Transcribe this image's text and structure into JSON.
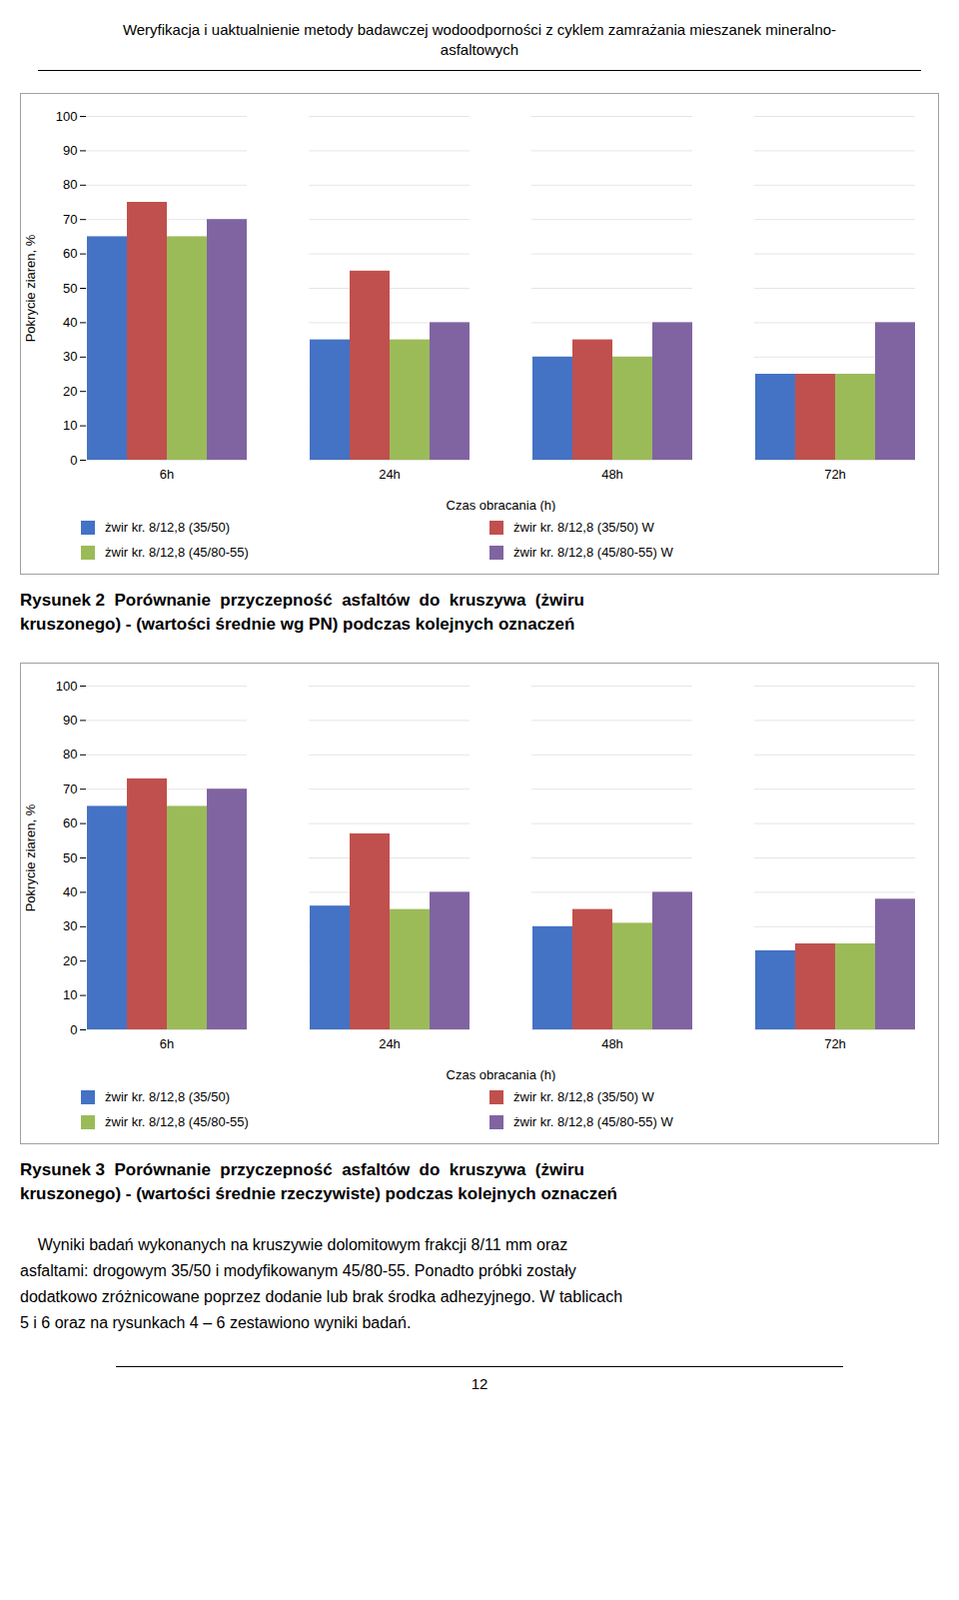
{
  "title": [
    "Weryfikacja i uaktualnienie metody badawczej wodoodporności z cyklem zamrażania mieszanek mineralno-",
    "asfaltowych"
  ],
  "text": [
    "    Wyniki badań wykonanych na kruszywie dolomitowym frakcji 8/11 mm oraz",
    "asfaltami: drogowym 35/50 i modyfikowanym 45/80-55. Ponadto próbki zostały",
    "dodatkowo zróżnicowane poprzez dodanie lub brak środka adhezyjnego. W tablicach",
    "5 i 6 oraz na rysunkach 4 – 6 zestawiono wyniki badań."
  ],
  "page_number": "12",
  "chart_data": [
    {
      "type": "bar",
      "caption": [
        "Rysunek 2  Porównanie  przyczepność  asfaltów  do  kruszywa  (żwiru",
        "kruszonego) - (wartości średnie wg PN) podczas kolejnych oznaczeń"
      ],
      "categories": [
        "6h",
        "24h",
        "48h",
        "72h"
      ],
      "series": [
        {
          "name": "żwir kr. 8/12,8 (35/50)",
          "color": "#4472C4",
          "values": [
            65,
            35,
            30,
            25
          ]
        },
        {
          "name": "żwir kr. 8/12,8 (35/50) W",
          "color": "#C0504D",
          "values": [
            75,
            55,
            35,
            25
          ]
        },
        {
          "name": "żwir kr. 8/12,8 (45/80-55)",
          "color": "#9BBB59",
          "values": [
            65,
            35,
            30,
            25
          ]
        },
        {
          "name": "żwir kr. 8/12,8 (45/80-55) W",
          "color": "#8064A2",
          "values": [
            70,
            40,
            40,
            40
          ]
        }
      ],
      "xlabel": "Czas obracania (h)",
      "ylabel": "Pokrycie ziaren, %",
      "ylim": [
        0,
        100
      ],
      "yticks": [
        0,
        10,
        20,
        30,
        40,
        50,
        60,
        70,
        80,
        90,
        100
      ],
      "grid": true,
      "legend": "bottom"
    },
    {
      "type": "bar",
      "caption": [
        "Rysunek 3  Porównanie  przyczepność  asfaltów  do  kruszywa  (żwiru",
        "kruszonego) - (wartości średnie rzeczywiste) podczas kolejnych oznaczeń"
      ],
      "categories": [
        "6h",
        "24h",
        "48h",
        "72h"
      ],
      "series": [
        {
          "name": "żwir kr. 8/12,8 (35/50)",
          "color": "#4472C4",
          "values": [
            65,
            36,
            30,
            23
          ]
        },
        {
          "name": "żwir kr. 8/12,8 (35/50) W",
          "color": "#C0504D",
          "values": [
            73,
            57,
            35,
            25
          ]
        },
        {
          "name": "żwir kr. 8/12,8 (45/80-55)",
          "color": "#9BBB59",
          "values": [
            65,
            35,
            31,
            25
          ]
        },
        {
          "name": "żwir kr. 8/12,8 (45/80-55) W",
          "color": "#8064A2",
          "values": [
            70,
            40,
            40,
            38
          ]
        }
      ],
      "xlabel": "Czas obracania (h)",
      "ylabel": "Pokrycie ziaren, %",
      "ylim": [
        0,
        100
      ],
      "yticks": [
        0,
        10,
        20,
        30,
        40,
        50,
        60,
        70,
        80,
        90,
        100
      ],
      "grid": true,
      "legend": "bottom"
    }
  ]
}
